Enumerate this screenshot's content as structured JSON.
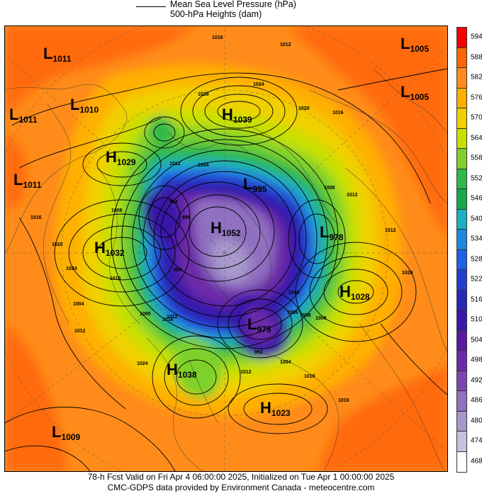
{
  "header": {
    "mslp_label": "Mean Sea Level Pressure (hPa)",
    "heights_label": "500-hPa Heights (dam)"
  },
  "colorbar": {
    "levels": [
      "594",
      "588",
      "582",
      "576",
      "570",
      "564",
      "558",
      "552",
      "546",
      "540",
      "534",
      "528",
      "522",
      "516",
      "510",
      "504",
      "498",
      "492",
      "486",
      "480",
      "474",
      "468"
    ],
    "colors": [
      "#ff0000",
      "#ff6600",
      "#ff8c1a",
      "#ffb000",
      "#f0d000",
      "#c8e000",
      "#7ed12a",
      "#2eb84a",
      "#18a84c",
      "#1ab0c0",
      "#1c88e0",
      "#2060e8",
      "#2040d0",
      "#2828b8",
      "#3818a8",
      "#5a1aa0",
      "#6c2aa8",
      "#7c48b0",
      "#9070c0",
      "#a898cc",
      "#c8c0e0",
      "#ffffff"
    ]
  },
  "systems": [
    {
      "type": "L",
      "value": "1011"
    },
    {
      "type": "L",
      "value": "1005"
    },
    {
      "type": "L",
      "value": "1005"
    },
    {
      "type": "L",
      "value": "1010"
    },
    {
      "type": "L",
      "value": "1011"
    },
    {
      "type": "H",
      "value": "1039"
    },
    {
      "type": "H",
      "value": "1029"
    },
    {
      "type": "L",
      "value": "1011"
    },
    {
      "type": "L",
      "value": "995"
    },
    {
      "type": "H",
      "value": "1052"
    },
    {
      "type": "H",
      "value": "1032"
    },
    {
      "type": "L",
      "value": "978"
    },
    {
      "type": "H",
      "value": "1028"
    },
    {
      "type": "L",
      "value": "975"
    },
    {
      "type": "H",
      "value": "1038"
    },
    {
      "type": "H",
      "value": "1023"
    },
    {
      "type": "L",
      "value": "1009"
    }
  ],
  "contour_labels": [
    "1016",
    "1012",
    "1024",
    "1028",
    "1020",
    "1016",
    "1012",
    "1004",
    "1012",
    "1008",
    "1016",
    "1008",
    "1020",
    "1016",
    "1012",
    "1004",
    "984",
    "996",
    "984",
    "1000",
    "1000",
    "1012",
    "1008",
    "1008",
    "992",
    "1004",
    "1016",
    "1012",
    "1016",
    "1024",
    "1024",
    "1012",
    "1016",
    "1020",
    "1008"
  ],
  "footer": {
    "line1": "78-h Fcst Valid on Fri Apr  4 06:00:00 2025, Initialized on Tue Apr  1 00:00:00 2025",
    "line2": "CMC-GDPS data provided by Environment Canada - meteocentre.com"
  }
}
